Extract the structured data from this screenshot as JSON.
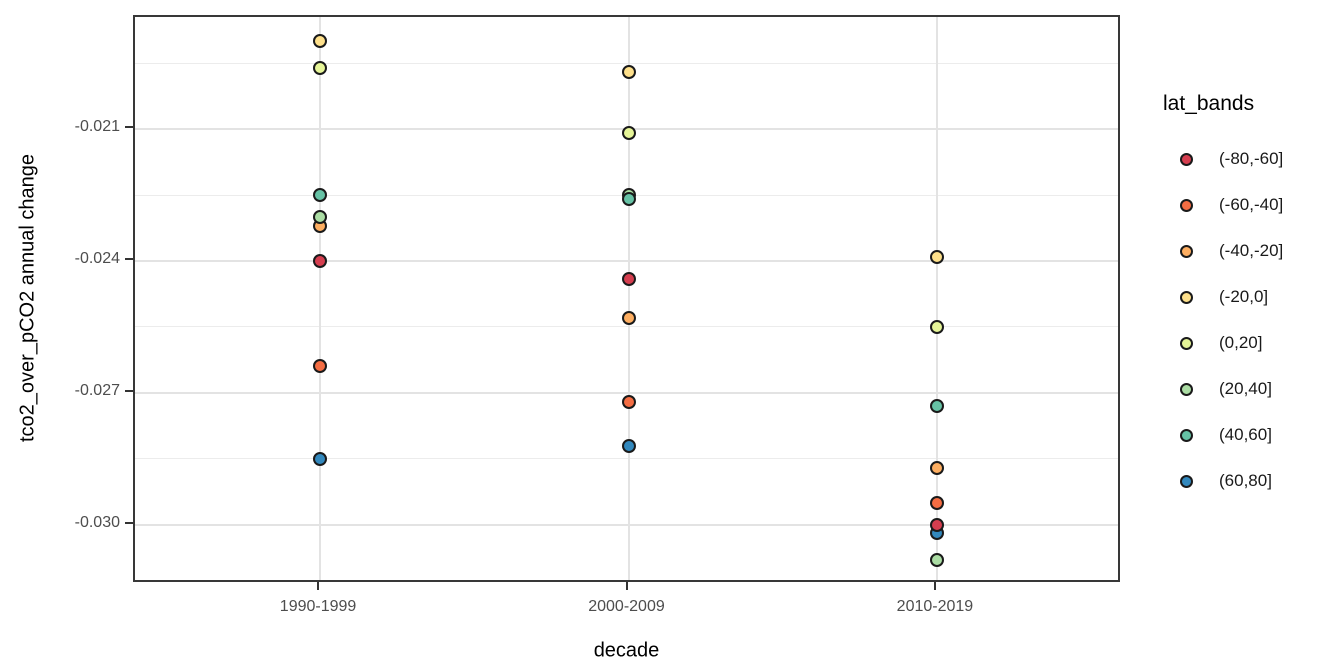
{
  "chart_data": {
    "type": "scatter",
    "title": "",
    "xlabel": "decade",
    "ylabel": "tco2_over_pCO2 annual change",
    "legend_title": "lat_bands",
    "legend_position": "right",
    "grid": "on",
    "categories": [
      "1990-1999",
      "2000-2009",
      "2010-2019"
    ],
    "y_tick_labels": [
      "-0.021",
      "-0.024",
      "-0.027",
      "-0.030"
    ],
    "y_minor_gridlines": [
      -0.0195,
      -0.0225,
      -0.0255,
      -0.0285
    ],
    "ylim": [
      -0.03135,
      -0.01845
    ],
    "series": [
      {
        "name": "(-80,-60]",
        "color": "#D53E4F",
        "values": [
          -0.024,
          -0.0244,
          -0.03
        ]
      },
      {
        "name": "(-60,-40]",
        "color": "#F46D43",
        "values": [
          -0.0264,
          -0.0272,
          -0.0295
        ]
      },
      {
        "name": "(-40,-20]",
        "color": "#FDAE61",
        "values": [
          -0.0232,
          -0.0253,
          -0.0287
        ]
      },
      {
        "name": "(-20,0]",
        "color": "#FEE08B",
        "values": [
          -0.019,
          -0.0197,
          -0.0239
        ]
      },
      {
        "name": "(0,20]",
        "color": "#E6F598",
        "values": [
          -0.0196,
          -0.0211,
          -0.0255
        ]
      },
      {
        "name": "(20,40]",
        "color": "#ABDDA4",
        "values": [
          -0.023,
          -0.0225,
          -0.0308
        ]
      },
      {
        "name": "(40,60]",
        "color": "#66C2A5",
        "values": [
          -0.0225,
          -0.0226,
          -0.0273
        ]
      },
      {
        "name": "(60,80]",
        "color": "#3288BD",
        "values": [
          -0.0285,
          -0.0282,
          -0.0302
        ]
      }
    ],
    "draw_order": [
      7,
      1,
      2,
      3,
      4,
      5,
      6,
      0
    ],
    "colors": {
      "panel_border": "#383838",
      "grid_major": "#E3E3E3",
      "grid_minor": "#ECECEC",
      "tick_mark": "#333333",
      "tick_label": "#4D4D4D",
      "axis_title": "#000000",
      "point_stroke": "#1A1A1A",
      "background": "#FFFFFF"
    }
  }
}
